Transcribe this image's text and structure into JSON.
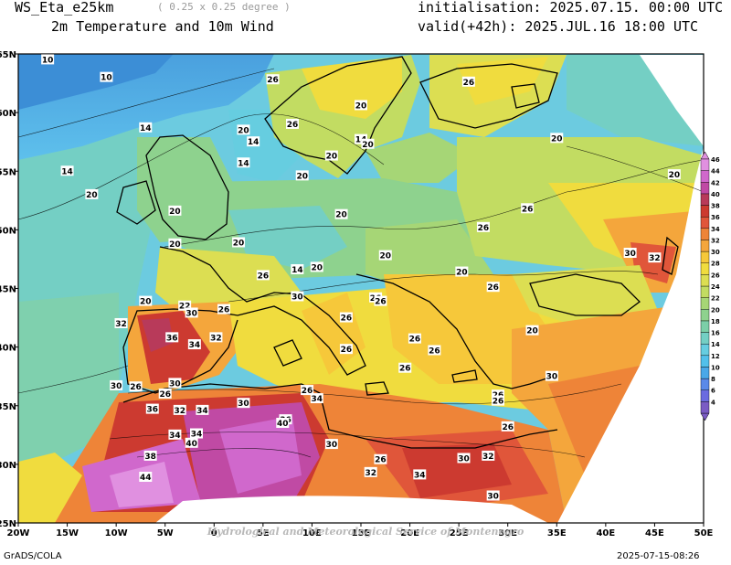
{
  "header": {
    "model": "WS_Eta_e25km",
    "resolution": "( 0.25 x 0.25 degree )",
    "field": "2m Temperature and 10m Wind",
    "init": "initialisation: 2025.07.15. 00:00 UTC",
    "valid": "valid(+42h): 2025.JUL.16 18:00 UTC"
  },
  "axes": {
    "lon_labels": [
      "20W",
      "15W",
      "10W",
      "5W",
      "0",
      "5E",
      "10E",
      "15E",
      "20E",
      "25E",
      "30E",
      "35E",
      "40E",
      "45E",
      "50E"
    ],
    "lat_labels": [
      "65N",
      "60N",
      "55N",
      "50N",
      "45N",
      "40N",
      "35N",
      "30N",
      "25N"
    ]
  },
  "colorbar": {
    "labels": [
      "4",
      "6",
      "8",
      "10",
      "12",
      "14",
      "16",
      "18",
      "20",
      "22",
      "24",
      "26",
      "28",
      "30",
      "32",
      "34",
      "36",
      "38",
      "40",
      "42",
      "44",
      "46"
    ],
    "colors": [
      "#7a5bc4",
      "#6b6be0",
      "#5a8ae8",
      "#4aa8e8",
      "#52c0ea",
      "#66cde0",
      "#74cfc4",
      "#7ccfa8",
      "#8ed28e",
      "#a6d676",
      "#c2dc62",
      "#dcde52",
      "#f0dc3e",
      "#f6c83a",
      "#f4a63c",
      "#ee8438",
      "#e0563a",
      "#cc3a30",
      "#b83a5a",
      "#c04aa4",
      "#d068cc",
      "#e090e0"
    ]
  },
  "contour_labels": [
    {
      "t": "10",
      "lon": -17,
      "lat": 64.5
    },
    {
      "t": "10",
      "lon": -11,
      "lat": 63
    },
    {
      "t": "26",
      "lon": 6,
      "lat": 62.8
    },
    {
      "t": "26",
      "lon": 26,
      "lat": 62.6
    },
    {
      "t": "14",
      "lon": -7,
      "lat": 58.7
    },
    {
      "t": "20",
      "lon": 3,
      "lat": 58.5
    },
    {
      "t": "26",
      "lon": 8,
      "lat": 59
    },
    {
      "t": "20",
      "lon": 15,
      "lat": 60.6
    },
    {
      "t": "14",
      "lon": 4,
      "lat": 57.5
    },
    {
      "t": "14",
      "lon": 15,
      "lat": 57.7
    },
    {
      "t": "20",
      "lon": 15.7,
      "lat": 57.3
    },
    {
      "t": "20",
      "lon": 12,
      "lat": 56.3
    },
    {
      "t": "14",
      "lon": 3,
      "lat": 55.7
    },
    {
      "t": "20",
      "lon": 35,
      "lat": 57.8
    },
    {
      "t": "14",
      "lon": -15,
      "lat": 55
    },
    {
      "t": "20",
      "lon": -12.5,
      "lat": 53
    },
    {
      "t": "20",
      "lon": 9,
      "lat": 54.6
    },
    {
      "t": "20",
      "lon": -4,
      "lat": 51.6
    },
    {
      "t": "20",
      "lon": 13,
      "lat": 51.3
    },
    {
      "t": "26",
      "lon": 32,
      "lat": 51.8
    },
    {
      "t": "20",
      "lon": -4,
      "lat": 48.8
    },
    {
      "t": "20",
      "lon": 2.5,
      "lat": 48.9
    },
    {
      "t": "26",
      "lon": 27.5,
      "lat": 50.2
    },
    {
      "t": "20",
      "lon": 47,
      "lat": 54.7
    },
    {
      "t": "20",
      "lon": 17.5,
      "lat": 47.8
    },
    {
      "t": "30",
      "lon": 42.5,
      "lat": 48
    },
    {
      "t": "32",
      "lon": 45,
      "lat": 47.6
    },
    {
      "t": "26",
      "lon": 5,
      "lat": 46.1
    },
    {
      "t": "14",
      "lon": 8.5,
      "lat": 46.6
    },
    {
      "t": "20",
      "lon": 10.5,
      "lat": 46.8
    },
    {
      "t": "20",
      "lon": 25.3,
      "lat": 46.4
    },
    {
      "t": "26",
      "lon": 28.5,
      "lat": 45.1
    },
    {
      "t": "30",
      "lon": 8.5,
      "lat": 44.3
    },
    {
      "t": "20",
      "lon": -7,
      "lat": 43.9
    },
    {
      "t": "22",
      "lon": -3,
      "lat": 43.5
    },
    {
      "t": "30",
      "lon": -2.3,
      "lat": 42.9
    },
    {
      "t": "26",
      "lon": 1,
      "lat": 43.2
    },
    {
      "t": "26",
      "lon": 16.5,
      "lat": 44.2
    },
    {
      "t": "26",
      "lon": 17,
      "lat": 43.9
    },
    {
      "t": "26",
      "lon": 13.5,
      "lat": 42.5
    },
    {
      "t": "32",
      "lon": -9.5,
      "lat": 42
    },
    {
      "t": "36",
      "lon": -4.3,
      "lat": 40.8
    },
    {
      "t": "34",
      "lon": -2,
      "lat": 40.2
    },
    {
      "t": "32",
      "lon": 0.2,
      "lat": 40.8
    },
    {
      "t": "26",
      "lon": 13.5,
      "lat": 39.8
    },
    {
      "t": "26",
      "lon": 20.5,
      "lat": 40.7
    },
    {
      "t": "26",
      "lon": 22.5,
      "lat": 39.7
    },
    {
      "t": "20",
      "lon": 32.5,
      "lat": 41.4
    },
    {
      "t": "26",
      "lon": 19.5,
      "lat": 38.2
    },
    {
      "t": "30",
      "lon": -4,
      "lat": 36.9
    },
    {
      "t": "30",
      "lon": -10,
      "lat": 36.7
    },
    {
      "t": "26",
      "lon": -8,
      "lat": 36.6
    },
    {
      "t": "26",
      "lon": -5,
      "lat": 36
    },
    {
      "t": "30",
      "lon": 34.5,
      "lat": 37.5
    },
    {
      "t": "26",
      "lon": 9.5,
      "lat": 36.3
    },
    {
      "t": "34",
      "lon": 10.5,
      "lat": 35.6
    },
    {
      "t": "26",
      "lon": 29,
      "lat": 35.9
    },
    {
      "t": "26",
      "lon": 29,
      "lat": 35.4
    },
    {
      "t": "30",
      "lon": 3,
      "lat": 35.2
    },
    {
      "t": "36",
      "lon": -6.3,
      "lat": 34.7
    },
    {
      "t": "32",
      "lon": -3.5,
      "lat": 34.6
    },
    {
      "t": "34",
      "lon": -1.2,
      "lat": 34.6
    },
    {
      "t": "36",
      "lon": 7.3,
      "lat": 33.8
    },
    {
      "t": "40",
      "lon": 7,
      "lat": 33.5
    },
    {
      "t": "26",
      "lon": 30,
      "lat": 33.2
    },
    {
      "t": "34",
      "lon": -4,
      "lat": 32.5
    },
    {
      "t": "40",
      "lon": -2.3,
      "lat": 31.8
    },
    {
      "t": "34",
      "lon": -1.8,
      "lat": 32.6
    },
    {
      "t": "30",
      "lon": 12,
      "lat": 31.7
    },
    {
      "t": "38",
      "lon": -6.5,
      "lat": 30.7
    },
    {
      "t": "26",
      "lon": 17,
      "lat": 30.4
    },
    {
      "t": "30",
      "lon": 25.5,
      "lat": 30.5
    },
    {
      "t": "32",
      "lon": 28,
      "lat": 30.7
    },
    {
      "t": "32",
      "lon": 16,
      "lat": 29.3
    },
    {
      "t": "34",
      "lon": 21,
      "lat": 29.1
    },
    {
      "t": "44",
      "lon": -7,
      "lat": 28.9
    },
    {
      "t": "30",
      "lon": 28.5,
      "lat": 27.3
    }
  ],
  "footer": {
    "left": "GrADS/COLA",
    "right": "2025-07-15-08:26",
    "watermark": "Hydrological and Meteorological Service of Montenegro"
  }
}
